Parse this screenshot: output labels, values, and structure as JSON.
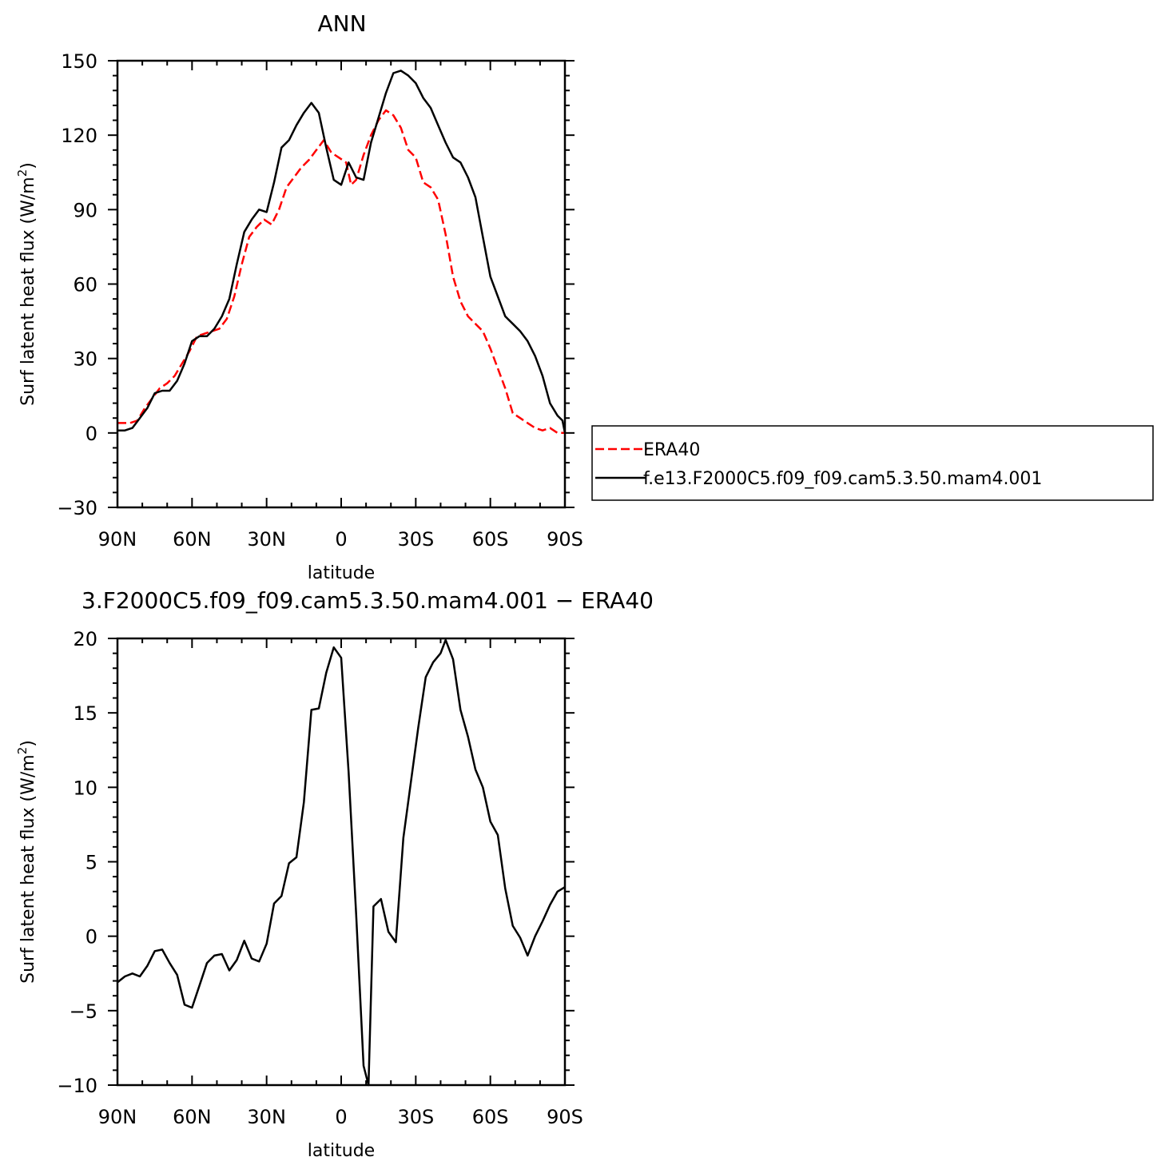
{
  "chart_data": [
    {
      "type": "line",
      "title": "ANN",
      "xlabel": "latitude",
      "ylabel": "Surf latent heat flux (W/m",
      "ylabel_sup": "2",
      "ylabel_end": ")",
      "xlim": [
        90,
        -90
      ],
      "ylim": [
        -30,
        150
      ],
      "x_ticks": [
        90,
        60,
        30,
        0,
        -30,
        -60,
        -90
      ],
      "x_tick_labels": [
        "90N",
        "60N",
        "30N",
        "0",
        "30S",
        "60S",
        "90S"
      ],
      "y_ticks": [
        150,
        120,
        90,
        60,
        30,
        0,
        -30
      ],
      "y_tick_labels": [
        "150",
        "120",
        "90",
        "60",
        "30",
        "0",
        "−30"
      ],
      "legend_position": "right",
      "series": [
        {
          "name": "ERA40",
          "color": "#ff0000",
          "style": "dashed",
          "points": [
            [
              90,
              4
            ],
            [
              88,
              4
            ],
            [
              85,
              4
            ],
            [
              82,
              5
            ],
            [
              79,
              10
            ],
            [
              76,
              14
            ],
            [
              73,
              18
            ],
            [
              70,
              20
            ],
            [
              67,
              23
            ],
            [
              64,
              28
            ],
            [
              61,
              33
            ],
            [
              58,
              39
            ],
            [
              55,
              40
            ],
            [
              52,
              41
            ],
            [
              49,
              42
            ],
            [
              46,
              46
            ],
            [
              43,
              55
            ],
            [
              40,
              68
            ],
            [
              37,
              79
            ],
            [
              34,
              83
            ],
            [
              31,
              86
            ],
            [
              28,
              84
            ],
            [
              25,
              90
            ],
            [
              22,
              99
            ],
            [
              19,
              103
            ],
            [
              16,
              107
            ],
            [
              13,
              110
            ],
            [
              10,
              114
            ],
            [
              7,
              118
            ],
            [
              4,
              113
            ],
            [
              1,
              111
            ],
            [
              -2,
              109
            ],
            [
              -4,
              100
            ],
            [
              -6,
              102
            ],
            [
              -9,
              112
            ],
            [
              -12,
              120
            ],
            [
              -15,
              126
            ],
            [
              -18,
              130
            ],
            [
              -21,
              128
            ],
            [
              -24,
              123
            ],
            [
              -27,
              114
            ],
            [
              -30,
              111
            ],
            [
              -33,
              101
            ],
            [
              -36,
              99
            ],
            [
              -39,
              94
            ],
            [
              -42,
              80
            ],
            [
              -45,
              63
            ],
            [
              -48,
              53
            ],
            [
              -51,
              47
            ],
            [
              -54,
              44
            ],
            [
              -57,
              41
            ],
            [
              -60,
              34
            ],
            [
              -63,
              26
            ],
            [
              -66,
              18
            ],
            [
              -69,
              8
            ],
            [
              -72,
              6
            ],
            [
              -75,
              4
            ],
            [
              -78,
              2
            ],
            [
              -81,
              1
            ],
            [
              -84,
              2
            ],
            [
              -87,
              0
            ],
            [
              -90,
              0
            ]
          ]
        },
        {
          "name": "f.e13.F2000C5.f09_f09.cam5.3.50.mam4.001",
          "color": "#000000",
          "style": "solid",
          "points": [
            [
              90,
              1
            ],
            [
              87,
              1
            ],
            [
              84,
              2
            ],
            [
              81,
              6
            ],
            [
              78,
              10
            ],
            [
              75,
              16
            ],
            [
              72,
              17
            ],
            [
              69,
              17
            ],
            [
              66,
              21
            ],
            [
              63,
              28
            ],
            [
              60,
              37
            ],
            [
              57,
              39
            ],
            [
              54,
              39
            ],
            [
              51,
              42
            ],
            [
              48,
              47
            ],
            [
              45,
              54
            ],
            [
              42,
              68
            ],
            [
              39,
              81
            ],
            [
              36,
              86
            ],
            [
              33,
              90
            ],
            [
              30,
              89
            ],
            [
              27,
              101
            ],
            [
              24,
              115
            ],
            [
              21,
              118
            ],
            [
              18,
              124
            ],
            [
              15,
              129
            ],
            [
              12,
              133
            ],
            [
              9,
              129
            ],
            [
              6,
              115
            ],
            [
              3,
              102
            ],
            [
              0,
              100
            ],
            [
              -3,
              109
            ],
            [
              -6,
              103
            ],
            [
              -9,
              102
            ],
            [
              -12,
              117
            ],
            [
              -15,
              127
            ],
            [
              -18,
              137
            ],
            [
              -21,
              145
            ],
            [
              -24,
              146
            ],
            [
              -27,
              144
            ],
            [
              -30,
              141
            ],
            [
              -33,
              135
            ],
            [
              -36,
              131
            ],
            [
              -39,
              124
            ],
            [
              -42,
              117
            ],
            [
              -45,
              111
            ],
            [
              -48,
              109
            ],
            [
              -51,
              103
            ],
            [
              -54,
              95
            ],
            [
              -57,
              79
            ],
            [
              -60,
              63
            ],
            [
              -63,
              55
            ],
            [
              -66,
              47
            ],
            [
              -69,
              44
            ],
            [
              -72,
              41
            ],
            [
              -75,
              37
            ],
            [
              -78,
              31
            ],
            [
              -81,
              23
            ],
            [
              -84,
              12
            ],
            [
              -87,
              7
            ],
            [
              -89,
              5
            ],
            [
              -90,
              0
            ]
          ]
        }
      ]
    },
    {
      "type": "line",
      "title": "3.F2000C5.f09_f09.cam5.3.50.mam4.001  −  ERA40",
      "xlabel": "latitude",
      "ylabel": "Surf latent heat flux (W/m",
      "ylabel_sup": "2",
      "ylabel_end": ")",
      "xlim": [
        90,
        -90
      ],
      "ylim": [
        -10,
        20
      ],
      "x_ticks": [
        90,
        60,
        30,
        0,
        -30,
        -60,
        -90
      ],
      "x_tick_labels": [
        "90N",
        "60N",
        "30N",
        "0",
        "30S",
        "60S",
        "90S"
      ],
      "y_ticks": [
        20,
        15,
        10,
        5,
        0,
        -5,
        -10
      ],
      "y_tick_labels": [
        "20",
        "15",
        "10",
        "5",
        "0",
        "−5",
        "−10"
      ],
      "series": [
        {
          "color": "#000000",
          "style": "solid",
          "points": [
            [
              90,
              -3.1
            ],
            [
              87,
              -2.7
            ],
            [
              84,
              -2.5
            ],
            [
              81,
              -2.7
            ],
            [
              78,
              -2
            ],
            [
              75,
              -1
            ],
            [
              72,
              -0.9
            ],
            [
              69,
              -1.8
            ],
            [
              66,
              -2.6
            ],
            [
              63,
              -4.6
            ],
            [
              60,
              -4.8
            ],
            [
              57,
              -3.3
            ],
            [
              54,
              -1.8
            ],
            [
              51,
              -1.3
            ],
            [
              48,
              -1.2
            ],
            [
              45,
              -2.3
            ],
            [
              42,
              -1.6
            ],
            [
              39,
              -0.3
            ],
            [
              36,
              -1.5
            ],
            [
              33,
              -1.7
            ],
            [
              30,
              -0.5
            ],
            [
              27,
              2.2
            ],
            [
              24,
              2.7
            ],
            [
              21,
              4.9
            ],
            [
              18,
              5.3
            ],
            [
              15,
              9
            ],
            [
              12,
              15.2
            ],
            [
              9,
              15.3
            ],
            [
              6,
              17.7
            ],
            [
              3,
              19.4
            ],
            [
              0,
              18.7
            ],
            [
              -3,
              11
            ],
            [
              -6,
              1.5
            ],
            [
              -9,
              -8.7
            ],
            [
              -11,
              -10
            ],
            [
              -13,
              2
            ],
            [
              -16,
              2.5
            ],
            [
              -19,
              0.3
            ],
            [
              -22,
              -0.4
            ],
            [
              -25,
              6.6
            ],
            [
              -28,
              10.3
            ],
            [
              -31,
              14
            ],
            [
              -34,
              17.4
            ],
            [
              -37,
              18.4
            ],
            [
              -40,
              19
            ],
            [
              -42,
              19.9
            ],
            [
              -45,
              18.6
            ],
            [
              -48,
              15.2
            ],
            [
              -51,
              13.4
            ],
            [
              -54,
              11.2
            ],
            [
              -57,
              10
            ],
            [
              -60,
              7.7
            ],
            [
              -63,
              6.8
            ],
            [
              -66,
              3.2
            ],
            [
              -69,
              0.7
            ],
            [
              -72,
              -0.1
            ],
            [
              -75,
              -1.3
            ],
            [
              -78,
              0
            ],
            [
              -81,
              1
            ],
            [
              -84,
              2.1
            ],
            [
              -87,
              3
            ],
            [
              -90,
              3.3
            ]
          ]
        }
      ]
    }
  ]
}
